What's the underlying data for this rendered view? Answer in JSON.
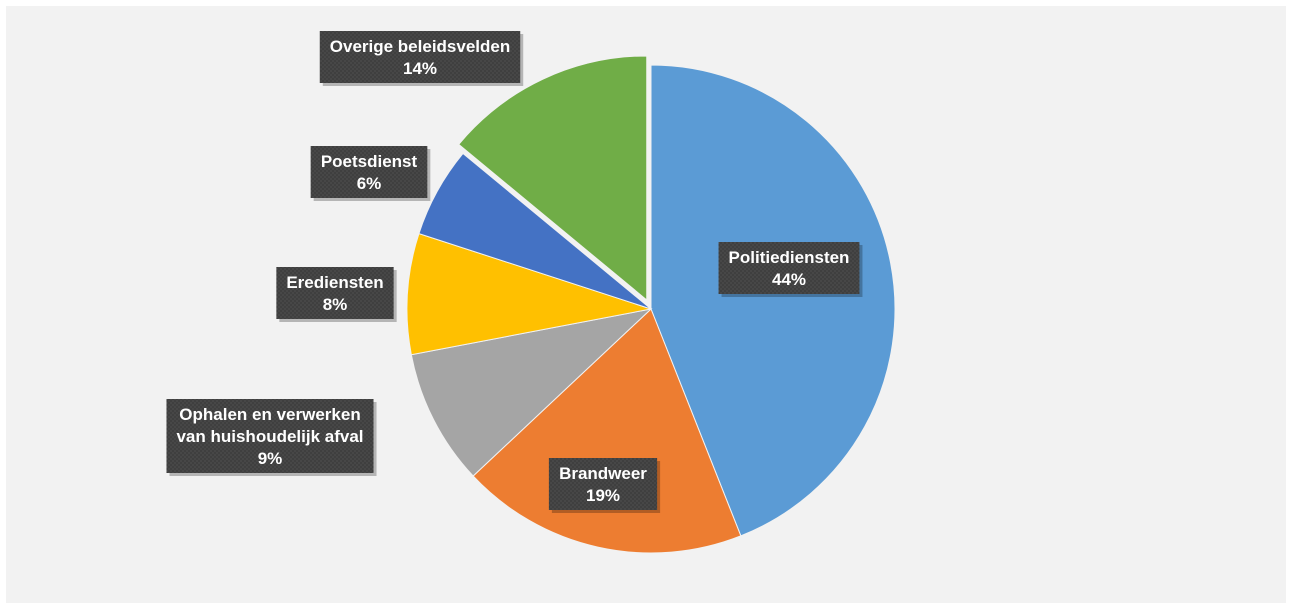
{
  "chart_data": {
    "type": "pie",
    "title": "",
    "start_angle_deg": 0,
    "direction": "clockwise",
    "slices": [
      {
        "name": "Politiediensten",
        "label_lines": [
          "Politiediensten"
        ],
        "value": 44,
        "value_label": "44%",
        "color": "#5b9bd5",
        "exploded": false
      },
      {
        "name": "Brandweer",
        "label_lines": [
          "Brandweer"
        ],
        "value": 19,
        "value_label": "19%",
        "color": "#ed7d31",
        "exploded": false
      },
      {
        "name": "Ophalen en verwerken van huishoudelijk afval",
        "label_lines": [
          "Ophalen en verwerken",
          "van huishoudelijk afval"
        ],
        "value": 9,
        "value_label": "9%",
        "color": "#a5a5a5",
        "exploded": false
      },
      {
        "name": "Erediensten",
        "label_lines": [
          "Erediensten"
        ],
        "value": 8,
        "value_label": "8%",
        "color": "#ffc000",
        "exploded": false
      },
      {
        "name": "Poetsdienst",
        "label_lines": [
          "Poetsdienst"
        ],
        "value": 6,
        "value_label": "6%",
        "color": "#4472c4",
        "exploded": false
      },
      {
        "name": "Overige beleidsvelden",
        "label_lines": [
          "Overige beleidsvelden"
        ],
        "value": 14,
        "value_label": "14%",
        "color": "#70ad47",
        "exploded": true
      }
    ],
    "label_box_color": "#404040",
    "label_text_color": "#ffffff",
    "legend": "none",
    "background_color": "#f2f2f2"
  }
}
